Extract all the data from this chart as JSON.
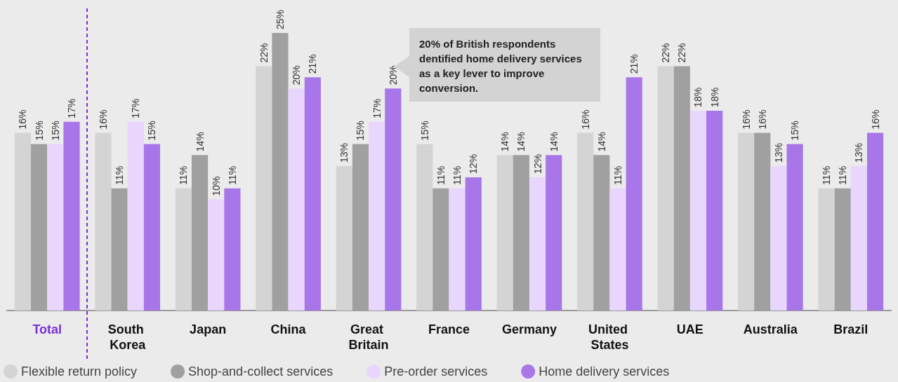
{
  "chart_data": {
    "type": "bar",
    "categories": [
      "Total",
      "South Korea",
      "Japan",
      "China",
      "Great Britain",
      "France",
      "Germany",
      "United States",
      "UAE",
      "Australia",
      "Brazil"
    ],
    "ylim": [
      0,
      25
    ],
    "series": [
      {
        "name": "Flexible return policy",
        "color": "#d4d4d4",
        "values": [
          16,
          16,
          11,
          22,
          13,
          15,
          14,
          16,
          22,
          16,
          11
        ],
        "value_labels": [
          "16%",
          "16%",
          "11%",
          "22%",
          "13%",
          "15%",
          "14%",
          "16%",
          "22%",
          "16%",
          "11%"
        ]
      },
      {
        "name": "Shop-and-collect services",
        "color": "#a0a0a0",
        "values": [
          15,
          11,
          14,
          25,
          15,
          11,
          14,
          14,
          22,
          16,
          11
        ],
        "value_labels": [
          "15%",
          "11%",
          "14%",
          "25%",
          "15%",
          "11%",
          "14%",
          "14%",
          "22%",
          "16%",
          "11%"
        ]
      },
      {
        "name": "Pre-order services",
        "color": "#e8d6fc",
        "values": [
          15,
          17,
          10,
          20,
          17,
          11,
          12,
          11,
          18,
          13,
          13
        ],
        "value_labels": [
          "15%",
          "17%",
          "10%",
          "20%",
          "17%",
          "11%",
          "12%",
          "11%",
          "18%",
          "13%",
          "13%"
        ]
      },
      {
        "name": "Home delivery services",
        "color": "#a876e8",
        "values": [
          17,
          15,
          11,
          21,
          20,
          12,
          14,
          21,
          18,
          15,
          16
        ],
        "value_labels": [
          "17%",
          "15%",
          "11%",
          "21%",
          "20%",
          "12%",
          "14%",
          "21%",
          "18%",
          "15%",
          "16%"
        ]
      }
    ],
    "annotations": [
      "20% of British respondents dentified home delivery services as a key lever to improve conversion."
    ],
    "legend": "bottom left"
  }
}
